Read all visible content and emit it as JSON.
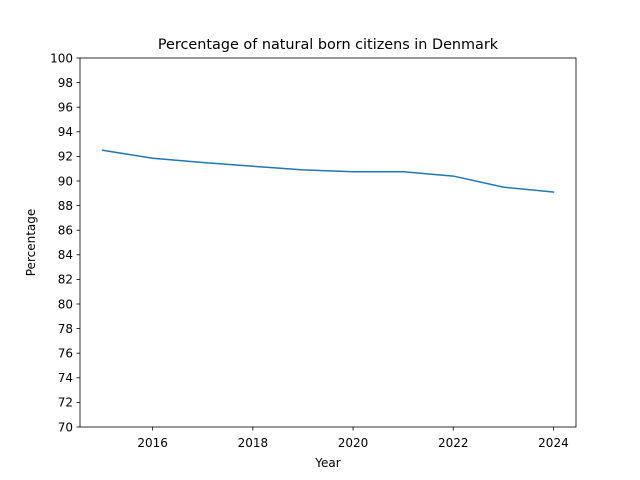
{
  "chart_data": {
    "type": "line",
    "title": "Percentage of natural born citizens in Denmark",
    "xlabel": "Year",
    "ylabel": "Percentage",
    "x": [
      2015,
      2016,
      2017,
      2018,
      2019,
      2020,
      2021,
      2022,
      2023,
      2024
    ],
    "series": [
      {
        "values": [
          92.5,
          91.85,
          91.5,
          91.2,
          90.9,
          90.75,
          90.75,
          90.4,
          89.5,
          89.1
        ],
        "color": "#1f77b4"
      }
    ],
    "xlim": [
      2014.55,
      2024.45
    ],
    "ylim": [
      70,
      100
    ],
    "x_ticks": [
      "2016",
      "2018",
      "2020",
      "2022",
      "2024"
    ],
    "y_ticks": [
      "70",
      "72",
      "74",
      "76",
      "78",
      "80",
      "82",
      "84",
      "86",
      "88",
      "90",
      "92",
      "94",
      "96",
      "98",
      "100"
    ],
    "grid": false,
    "legend": "none"
  }
}
